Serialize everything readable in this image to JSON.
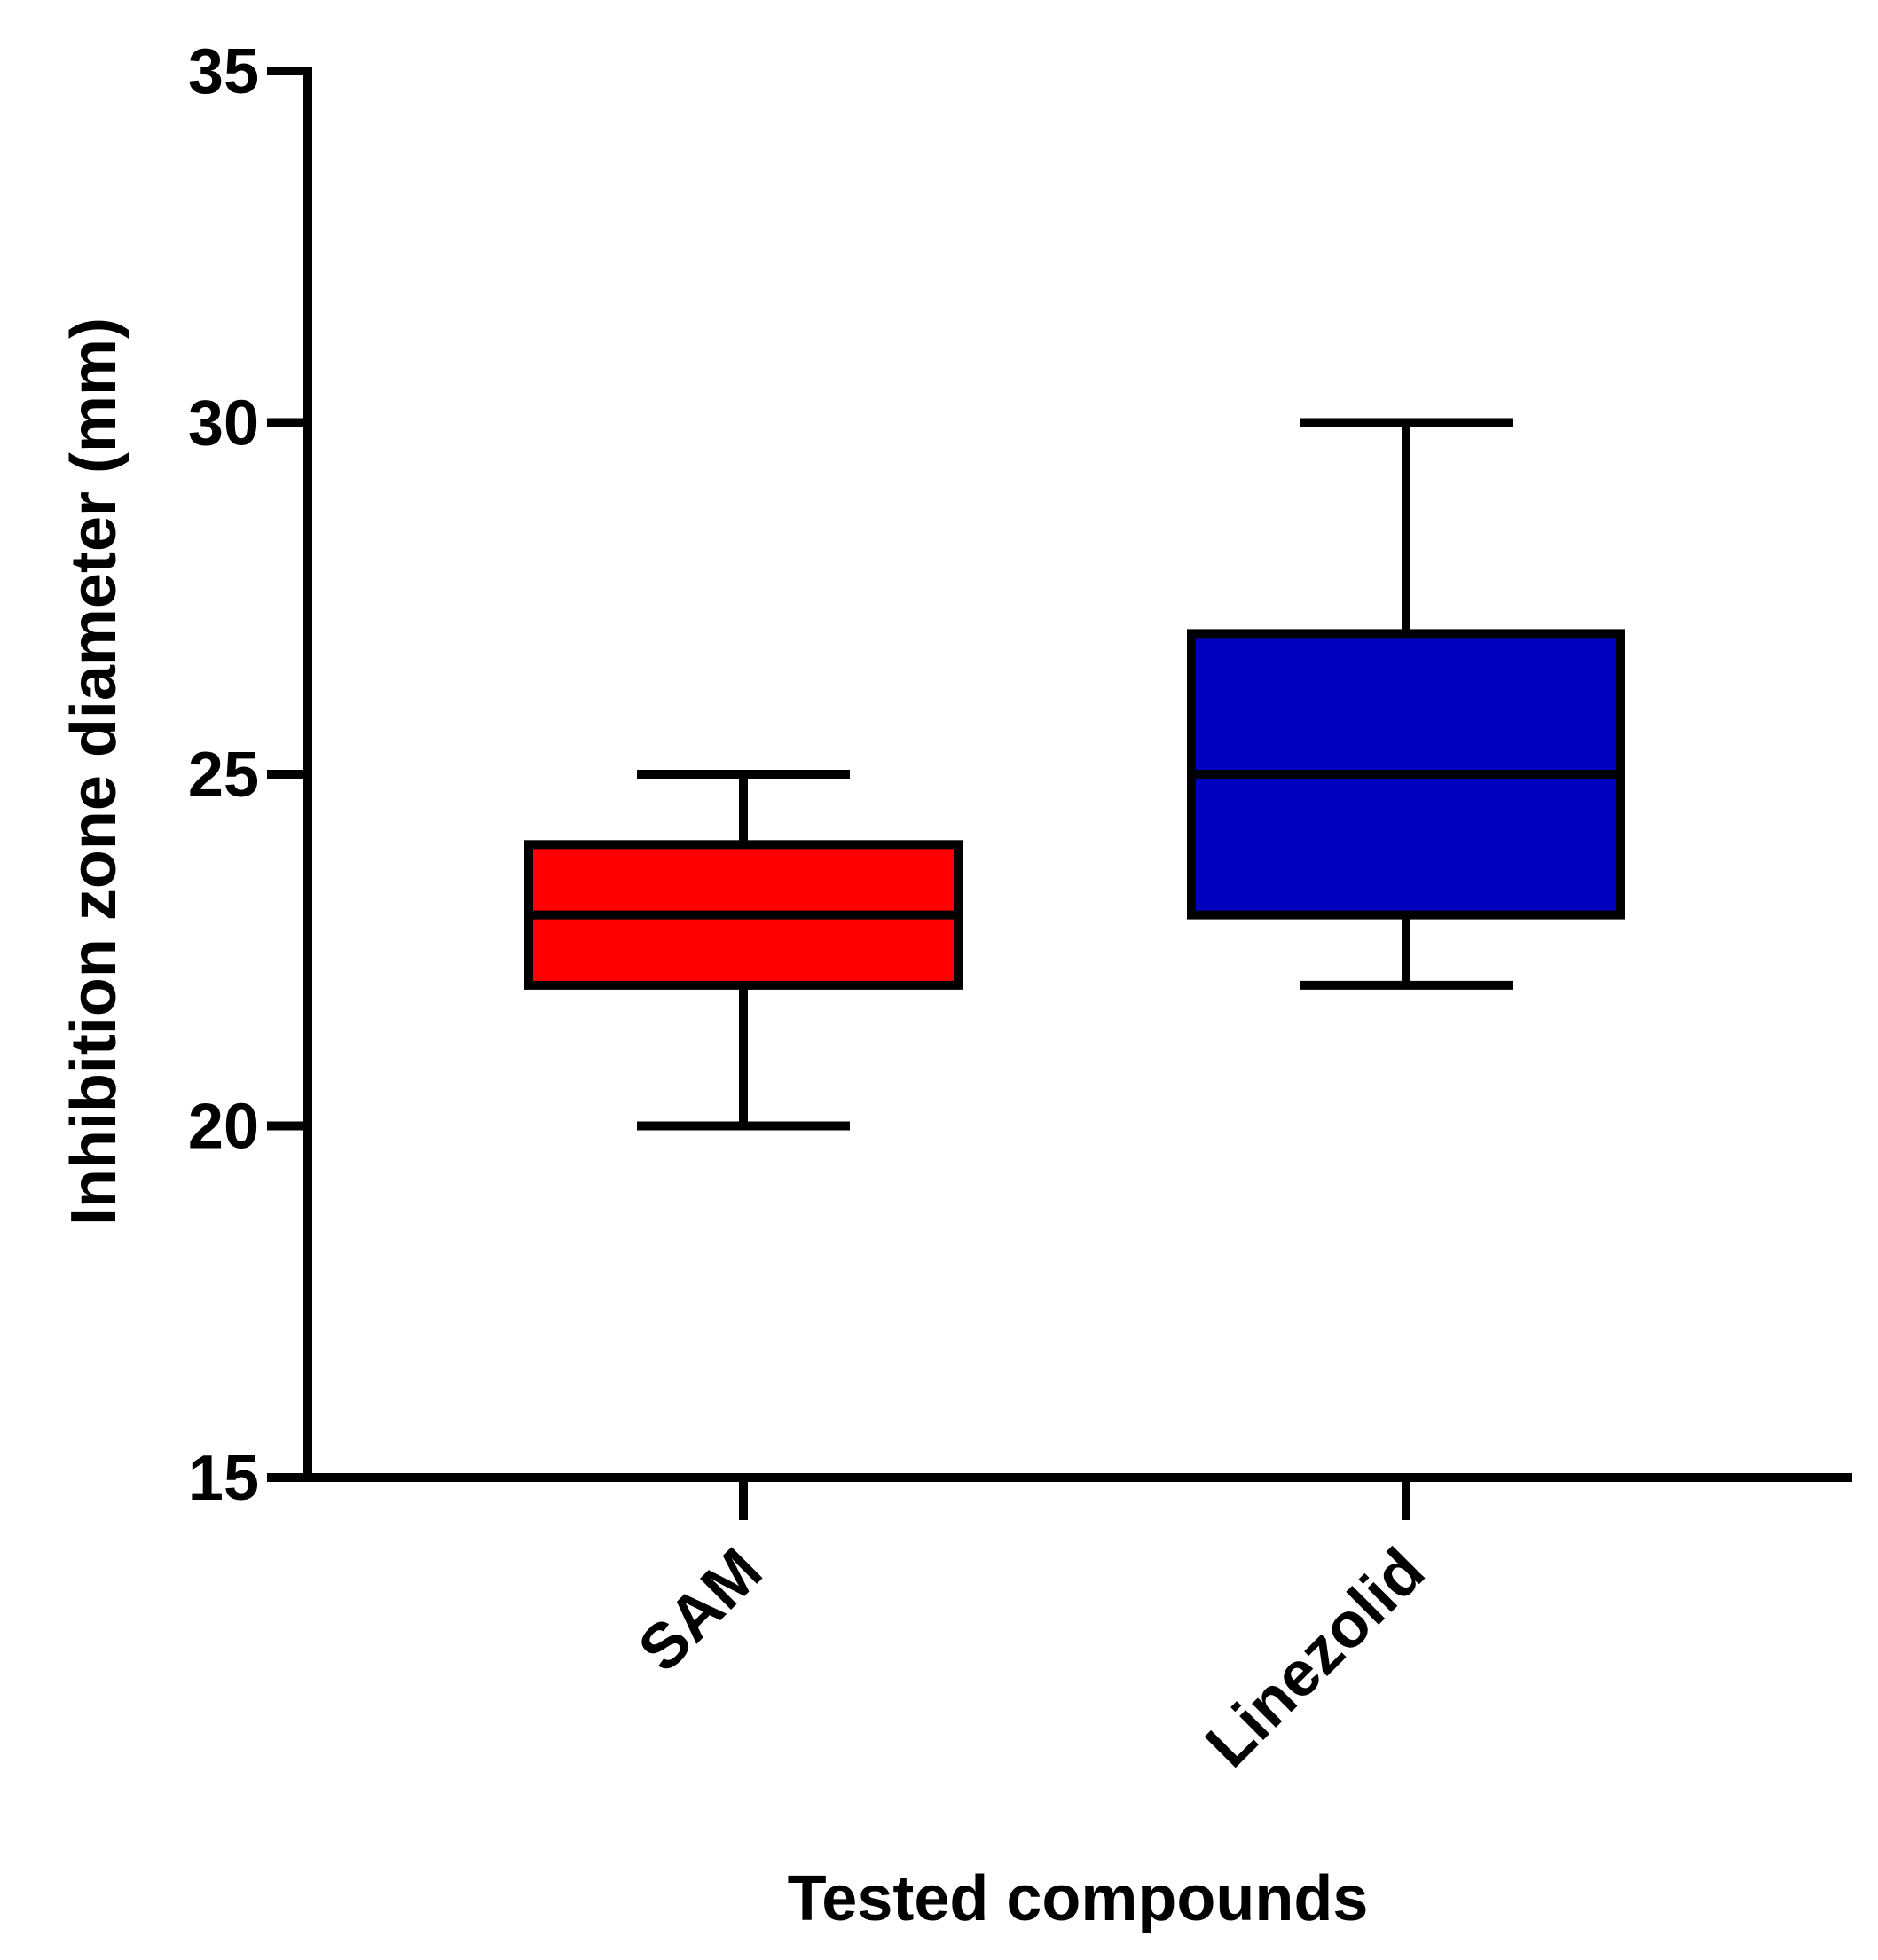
{
  "chart_data": {
    "type": "boxplot",
    "title": "",
    "xlabel": "Tested compounds",
    "ylabel": "Inhibition zone diameter (mm)",
    "ylim": [
      15,
      35
    ],
    "yticks": [
      15,
      20,
      25,
      30,
      35
    ],
    "grid": false,
    "categories": [
      "SAM",
      "Linezolid"
    ],
    "series": [
      {
        "name": "SAM",
        "min": 20,
        "q1": 22,
        "median": 23,
        "q3": 24,
        "max": 25,
        "color": "#ff0000"
      },
      {
        "name": "Linezolid",
        "min": 22,
        "q1": 23,
        "median": 25,
        "q3": 27,
        "max": 30,
        "color": "#0000bf"
      }
    ]
  }
}
